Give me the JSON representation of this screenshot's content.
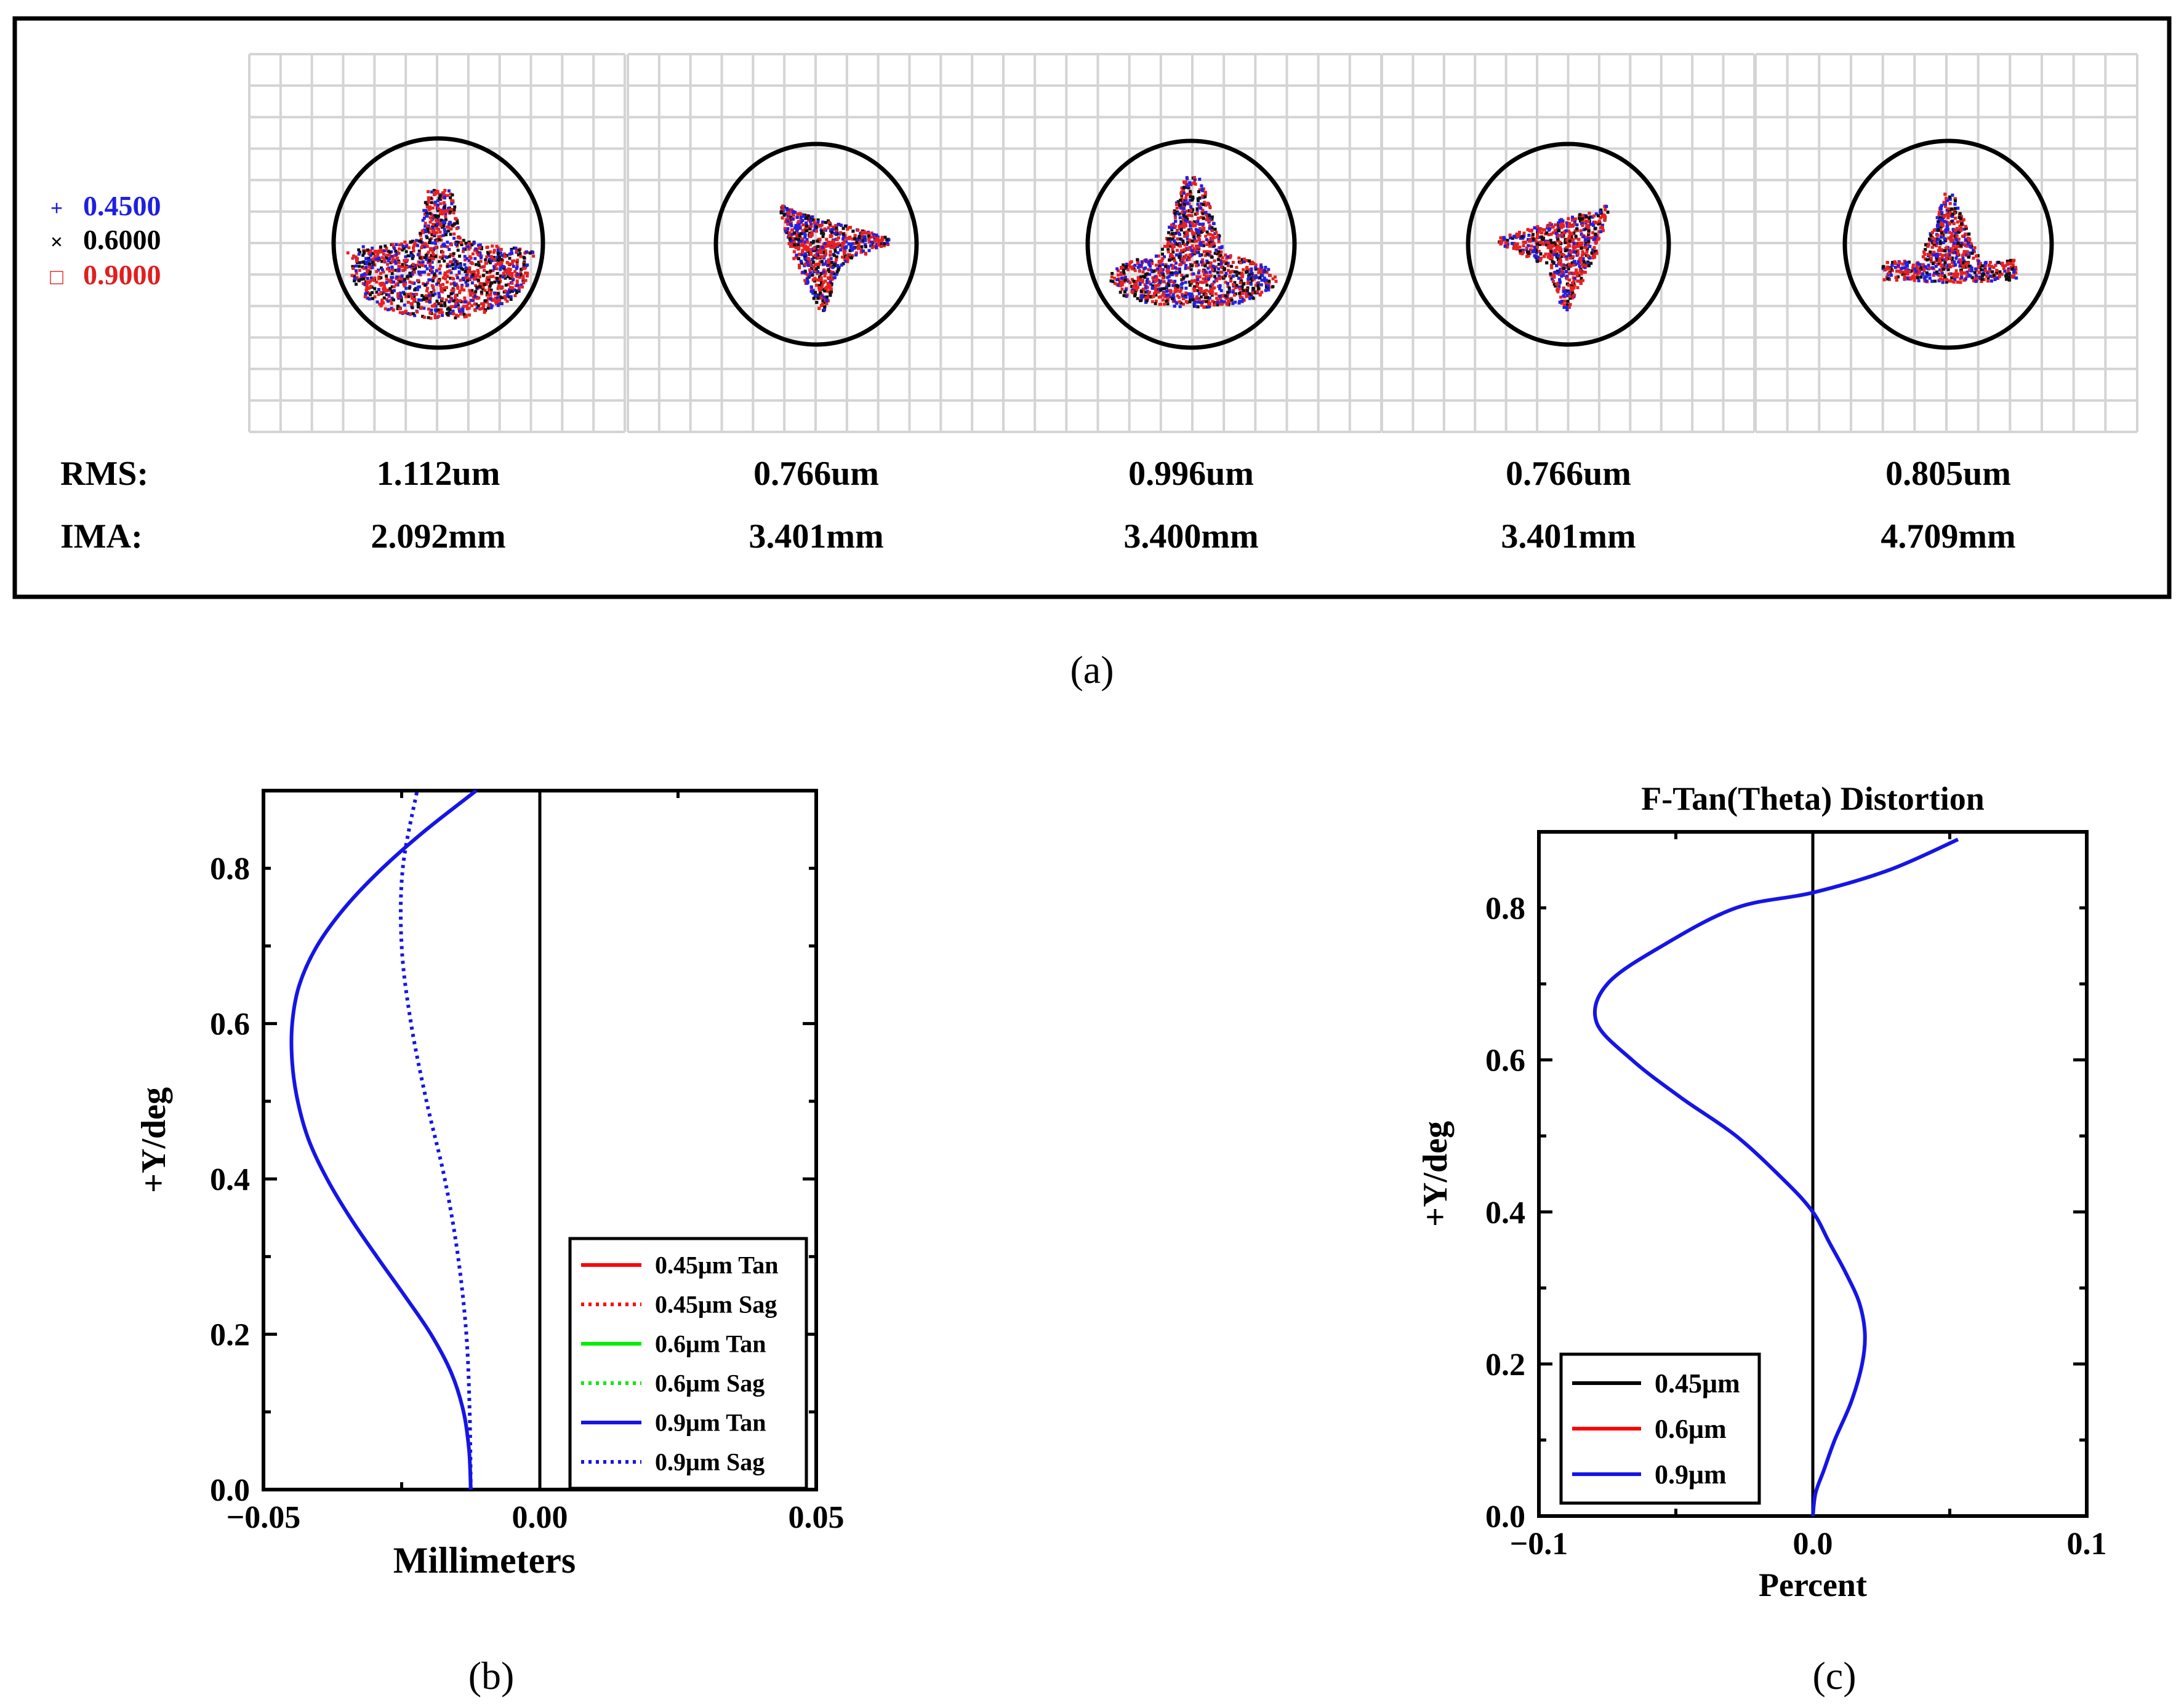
{
  "panel_a": {
    "caption": "(a)",
    "legend": [
      {
        "label": "0.4500",
        "color": "#1f1fe0",
        "marker": "+"
      },
      {
        "label": "0.6000",
        "color": "#000000",
        "marker": "×"
      },
      {
        "label": "0.9000",
        "color": "#e01f1f",
        "marker": "□"
      }
    ],
    "rms_label": "RMS:",
    "ima_label": "IMA:",
    "spots": [
      {
        "rms": "1.112um",
        "ima": "2.092mm",
        "shape": "umbrella-wide"
      },
      {
        "rms": "0.766um",
        "ima": "3.401mm",
        "shape": "three-lobe-right"
      },
      {
        "rms": "0.996um",
        "ima": "3.400mm",
        "shape": "umbrella-narrow"
      },
      {
        "rms": "0.766um",
        "ima": "3.401mm",
        "shape": "three-lobe-left"
      },
      {
        "rms": "0.805um",
        "ima": "4.709mm",
        "shape": "arrow"
      }
    ]
  },
  "chart_data": [
    {
      "type": "line",
      "caption": "(b)",
      "title": "",
      "xlabel": "Millimeters",
      "ylabel": "+Y/deg",
      "xlim": [
        -0.05,
        0.05
      ],
      "ylim": [
        0.0,
        0.9
      ],
      "xticks": [
        "−0.05",
        "0.00",
        "0.05"
      ],
      "yticks": [
        "0.0",
        "0.2",
        "0.4",
        "0.6",
        "0.8"
      ],
      "legend_position": "bottom-right",
      "legend": [
        {
          "name": "0.45μm Tan",
          "color": "#ff0000",
          "dash": "solid"
        },
        {
          "name": "0.45μm Sag",
          "color": "#ff0000",
          "dash": "dotted"
        },
        {
          "name": "0.6μm Tan",
          "color": "#00ee00",
          "dash": "solid"
        },
        {
          "name": "0.6μm Sag",
          "color": "#00ee00",
          "dash": "dotted"
        },
        {
          "name": "0.9μm Tan",
          "color": "#1515e6",
          "dash": "solid"
        },
        {
          "name": "0.9μm Sag",
          "color": "#1515e6",
          "dash": "dotted"
        }
      ],
      "series": [
        {
          "name": "0.9μm Tan",
          "color": "#1515e6",
          "dash": "solid",
          "points": [
            [
              -0.0125,
              0.0
            ],
            [
              -0.0128,
              0.05
            ],
            [
              -0.0138,
              0.1
            ],
            [
              -0.016,
              0.15
            ],
            [
              -0.0197,
              0.2
            ],
            [
              -0.0245,
              0.25
            ],
            [
              -0.0295,
              0.3
            ],
            [
              -0.0343,
              0.35
            ],
            [
              -0.0385,
              0.4
            ],
            [
              -0.0418,
              0.45
            ],
            [
              -0.0438,
              0.5
            ],
            [
              -0.0448,
              0.55
            ],
            [
              -0.0448,
              0.6
            ],
            [
              -0.0435,
              0.65
            ],
            [
              -0.0403,
              0.7
            ],
            [
              -0.0352,
              0.75
            ],
            [
              -0.0285,
              0.8
            ],
            [
              -0.0205,
              0.85
            ],
            [
              -0.0115,
              0.9
            ]
          ]
        },
        {
          "name": "0.9μm Sag",
          "color": "#1515e6",
          "dash": "dotted",
          "points": [
            [
              -0.0125,
              0.0
            ],
            [
              -0.0127,
              0.1
            ],
            [
              -0.0133,
              0.2
            ],
            [
              -0.0148,
              0.3
            ],
            [
              -0.0172,
              0.4
            ],
            [
              -0.0205,
              0.5
            ],
            [
              -0.0233,
              0.6
            ],
            [
              -0.025,
              0.7
            ],
            [
              -0.0248,
              0.8
            ],
            [
              -0.0222,
              0.9
            ]
          ]
        }
      ]
    },
    {
      "type": "line",
      "caption": "(c)",
      "title": "F-Tan(Theta) Distortion",
      "xlabel": "Percent",
      "ylabel": "+Y/deg",
      "xlim": [
        -0.1,
        0.1
      ],
      "ylim": [
        0.0,
        0.9
      ],
      "xticks": [
        "−0.1",
        "0.0",
        "0.1"
      ],
      "yticks": [
        "0.0",
        "0.2",
        "0.4",
        "0.6",
        "0.8"
      ],
      "legend_position": "bottom-left",
      "legend": [
        {
          "name": "0.45μm",
          "color": "#000000",
          "dash": "solid"
        },
        {
          "name": "0.6μm",
          "color": "#ff0000",
          "dash": "solid"
        },
        {
          "name": "0.9μm",
          "color": "#1515e6",
          "dash": "solid"
        }
      ],
      "series": [
        {
          "name": "0.9μm",
          "color": "#1515e6",
          "dash": "solid",
          "points": [
            [
              0.0,
              0.0
            ],
            [
              0.001,
              0.03
            ],
            [
              0.004,
              0.06
            ],
            [
              0.008,
              0.1
            ],
            [
              0.014,
              0.15
            ],
            [
              0.018,
              0.2
            ],
            [
              0.019,
              0.24
            ],
            [
              0.017,
              0.28
            ],
            [
              0.012,
              0.32
            ],
            [
              0.006,
              0.36
            ],
            [
              0.0,
              0.4
            ],
            [
              -0.01,
              0.44
            ],
            [
              -0.028,
              0.5
            ],
            [
              -0.048,
              0.55
            ],
            [
              -0.066,
              0.6
            ],
            [
              -0.079,
              0.65
            ],
            [
              -0.075,
              0.7
            ],
            [
              -0.055,
              0.75
            ],
            [
              -0.028,
              0.8
            ],
            [
              0.0,
              0.82
            ],
            [
              0.028,
              0.85
            ],
            [
              0.053,
              0.89
            ]
          ]
        }
      ]
    }
  ]
}
